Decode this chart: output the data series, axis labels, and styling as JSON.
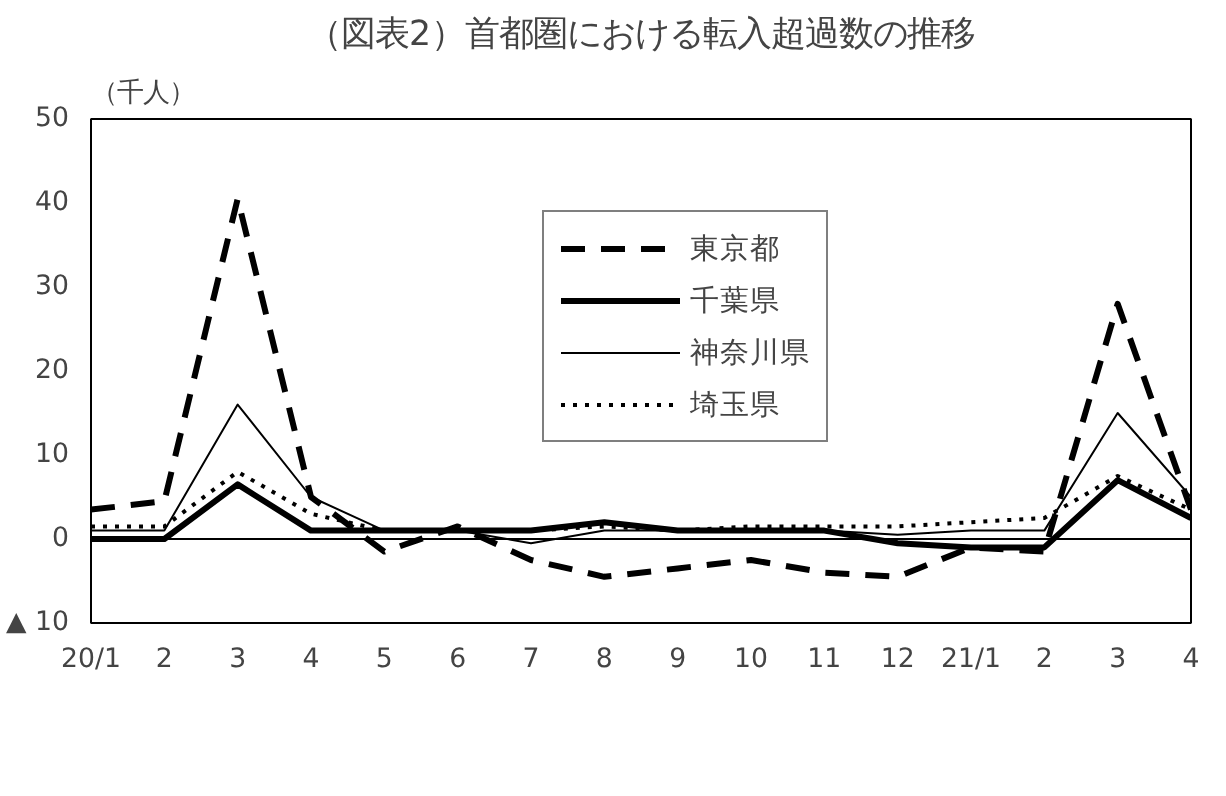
{
  "chart_data": {
    "type": "line",
    "title": "（図表2）首都圏における転入超過数の推移",
    "ylabel": "（千人）",
    "categories": [
      "20/1",
      "2",
      "3",
      "4",
      "5",
      "6",
      "7",
      "8",
      "9",
      "10",
      "11",
      "12",
      "21/1",
      "2",
      "3",
      "4"
    ],
    "series": [
      {
        "name": "東京都",
        "color": "#000000",
        "line_style": "dashed",
        "values": [
          3.5,
          4.5,
          40.5,
          5,
          -1.5,
          1.5,
          -2.5,
          -4.5,
          -3.5,
          -2.5,
          -4,
          -4.5,
          -1,
          -1.5,
          28,
          3.5
        ]
      },
      {
        "name": "千葉県",
        "color": "#000000",
        "line_style": "solid",
        "values": [
          0,
          0,
          6.5,
          1,
          1,
          1,
          1,
          2,
          1,
          1,
          1,
          -0.5,
          -1,
          -1,
          7,
          2.5
        ]
      },
      {
        "name": "神奈川県",
        "color": "#000000",
        "line_style": "solid",
        "values": [
          1,
          1,
          16,
          5,
          1,
          1,
          -0.5,
          1,
          1,
          1,
          1,
          0.5,
          1,
          1,
          15,
          5
        ]
      },
      {
        "name": "埼玉県",
        "color": "#000000",
        "line_style": "dotted",
        "values": [
          1.5,
          1.5,
          8,
          3,
          1,
          1,
          1,
          1.5,
          1,
          1.5,
          1.5,
          1.5,
          2,
          2.5,
          7.5,
          3.5
        ]
      }
    ],
    "ylim": [
      -10,
      50
    ],
    "yticks": [
      {
        "value": -10,
        "label": "▲ 10"
      },
      0,
      10,
      20,
      30,
      40,
      50
    ],
    "ref_lines": [
      {
        "axis": "y",
        "value": 0,
        "label": null,
        "color": "#000000"
      }
    ],
    "grid": false,
    "legend": "top right"
  }
}
